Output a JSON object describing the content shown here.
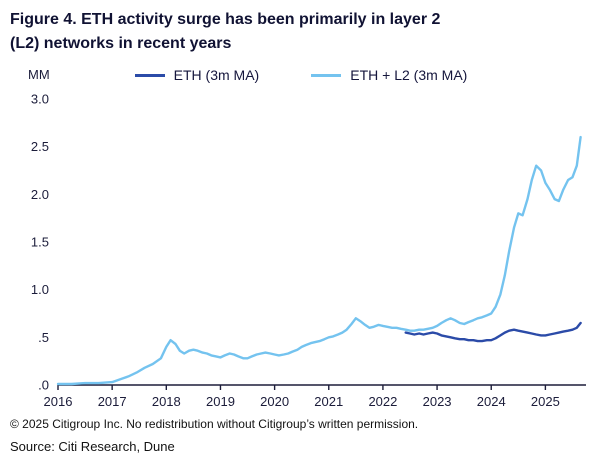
{
  "figure": {
    "title_line1": "Figure 4. ETH activity surge has been primarily in layer 2",
    "title_line2": "(L2) networks in recent years"
  },
  "footer": {
    "copyright": "© 2025 Citigroup Inc. No redistribution without Citigroup’s written permission.",
    "source": "Source: Citi Research, Dune"
  },
  "chart_data": {
    "type": "line",
    "title": "Figure 4. ETH activity surge has been primarily in layer 2 (L2) networks in recent years",
    "unit_label": "MM",
    "xlabel": "",
    "ylabel": "MM",
    "xlim": [
      2016,
      2025.75
    ],
    "ylim": [
      0,
      3.0
    ],
    "grid": false,
    "legend_position": "top",
    "axis_color": "#1d1d3a",
    "yticks": [
      0,
      0.5,
      1.0,
      1.5,
      2.0,
      2.5,
      3.0
    ],
    "ytick_labels": [
      ".0",
      ".5",
      "1.0",
      "1.5",
      "2.0",
      "2.5",
      "3.0"
    ],
    "xticks": [
      2016,
      2017,
      2018,
      2019,
      2020,
      2021,
      2022,
      2023,
      2024,
      2025
    ],
    "series": [
      {
        "id": "eth",
        "name": "ETH (3m MA)",
        "color": "#2b4ba8",
        "x": [
          2022.42,
          2022.5,
          2022.58,
          2022.67,
          2022.75,
          2022.83,
          2022.92,
          2023.0,
          2023.08,
          2023.17,
          2023.25,
          2023.33,
          2023.42,
          2023.5,
          2023.58,
          2023.67,
          2023.75,
          2023.83,
          2023.92,
          2024.0,
          2024.08,
          2024.17,
          2024.25,
          2024.33,
          2024.42,
          2024.5,
          2024.58,
          2024.67,
          2024.75,
          2024.83,
          2024.92,
          2025.0,
          2025.08,
          2025.17,
          2025.25,
          2025.33,
          2025.42,
          2025.5,
          2025.58,
          2025.65
        ],
        "y": [
          0.55,
          0.54,
          0.53,
          0.54,
          0.53,
          0.54,
          0.55,
          0.54,
          0.52,
          0.51,
          0.5,
          0.49,
          0.48,
          0.48,
          0.47,
          0.47,
          0.46,
          0.46,
          0.47,
          0.47,
          0.49,
          0.52,
          0.55,
          0.57,
          0.58,
          0.57,
          0.56,
          0.55,
          0.54,
          0.53,
          0.52,
          0.52,
          0.53,
          0.54,
          0.55,
          0.56,
          0.57,
          0.58,
          0.6,
          0.65
        ]
      },
      {
        "id": "eth-l2",
        "name": "ETH + L2 (3m MA)",
        "color": "#74c3ef",
        "x": [
          2016.0,
          2016.25,
          2016.5,
          2016.75,
          2017.0,
          2017.15,
          2017.3,
          2017.45,
          2017.6,
          2017.75,
          2017.9,
          2018.0,
          2018.08,
          2018.17,
          2018.25,
          2018.33,
          2018.42,
          2018.5,
          2018.58,
          2018.67,
          2018.75,
          2018.83,
          2018.92,
          2019.0,
          2019.08,
          2019.17,
          2019.25,
          2019.33,
          2019.42,
          2019.5,
          2019.58,
          2019.67,
          2019.75,
          2019.83,
          2019.92,
          2020.0,
          2020.08,
          2020.17,
          2020.25,
          2020.33,
          2020.42,
          2020.5,
          2020.58,
          2020.67,
          2020.75,
          2020.83,
          2020.92,
          2021.0,
          2021.08,
          2021.17,
          2021.25,
          2021.33,
          2021.42,
          2021.5,
          2021.58,
          2021.67,
          2021.75,
          2021.83,
          2021.92,
          2022.0,
          2022.08,
          2022.17,
          2022.25,
          2022.33,
          2022.42,
          2022.5,
          2022.58,
          2022.67,
          2022.75,
          2022.83,
          2022.92,
          2023.0,
          2023.08,
          2023.17,
          2023.25,
          2023.33,
          2023.42,
          2023.5,
          2023.58,
          2023.67,
          2023.75,
          2023.83,
          2023.92,
          2024.0,
          2024.08,
          2024.17,
          2024.25,
          2024.33,
          2024.42,
          2024.5,
          2024.58,
          2024.67,
          2024.75,
          2024.83,
          2024.92,
          2025.0,
          2025.08,
          2025.17,
          2025.25,
          2025.33,
          2025.42,
          2025.5,
          2025.58,
          2025.65
        ],
        "y": [
          0.01,
          0.01,
          0.02,
          0.02,
          0.03,
          0.06,
          0.09,
          0.13,
          0.18,
          0.22,
          0.28,
          0.4,
          0.47,
          0.43,
          0.36,
          0.33,
          0.36,
          0.37,
          0.36,
          0.34,
          0.33,
          0.31,
          0.3,
          0.29,
          0.31,
          0.33,
          0.32,
          0.3,
          0.28,
          0.28,
          0.3,
          0.32,
          0.33,
          0.34,
          0.33,
          0.32,
          0.31,
          0.32,
          0.33,
          0.35,
          0.37,
          0.4,
          0.42,
          0.44,
          0.45,
          0.46,
          0.48,
          0.5,
          0.51,
          0.53,
          0.55,
          0.58,
          0.64,
          0.7,
          0.67,
          0.63,
          0.6,
          0.61,
          0.63,
          0.62,
          0.61,
          0.6,
          0.6,
          0.59,
          0.58,
          0.57,
          0.57,
          0.58,
          0.58,
          0.59,
          0.6,
          0.62,
          0.65,
          0.68,
          0.7,
          0.68,
          0.65,
          0.64,
          0.66,
          0.68,
          0.7,
          0.71,
          0.73,
          0.75,
          0.82,
          0.95,
          1.15,
          1.4,
          1.65,
          1.8,
          1.78,
          1.95,
          2.15,
          2.3,
          2.25,
          2.12,
          2.05,
          1.95,
          1.93,
          2.05,
          2.15,
          2.18,
          2.3,
          2.6
        ]
      }
    ]
  }
}
